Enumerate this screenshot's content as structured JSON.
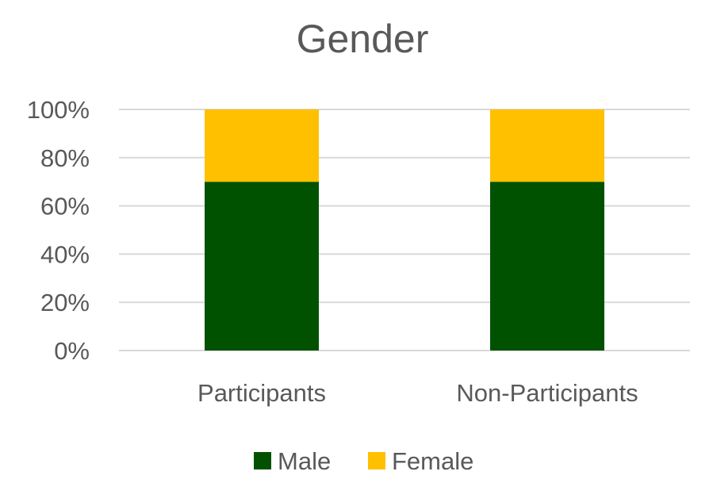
{
  "chart_data": {
    "type": "bar",
    "stacked": true,
    "title": "Gender",
    "xlabel": "",
    "ylabel": "",
    "categories": [
      "Participants",
      "Non-Participants"
    ],
    "series": [
      {
        "name": "Male",
        "values": [
          70,
          70
        ],
        "color": "#005200"
      },
      {
        "name": "Female",
        "values": [
          30,
          30
        ],
        "color": "#ffc000"
      }
    ],
    "yticks": [
      "0%",
      "20%",
      "40%",
      "60%",
      "80%",
      "100%"
    ],
    "ylim": [
      0,
      100
    ],
    "grid": true,
    "legend": "bottom"
  }
}
